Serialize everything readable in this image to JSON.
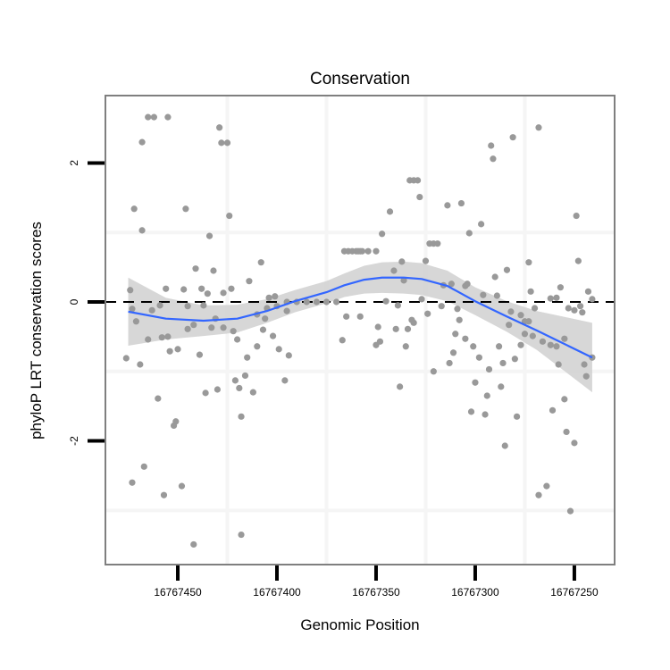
{
  "chart_data": {
    "type": "scatter",
    "title": "Conservation",
    "xlabel": "Genomic Position",
    "ylabel": "phyloP LRT conservation scores",
    "xlim": [
      16767486.5,
      16767229.7
    ],
    "x_reversed": true,
    "ylim": [
      -3.78,
      2.97
    ],
    "x_ticks": [
      16767450,
      16767400,
      16767350,
      16767300,
      16767250
    ],
    "x_tick_labels": [
      "16767450",
      "16767400",
      "16767350",
      "16767300",
      "16767250"
    ],
    "y_ticks": [
      2,
      0,
      -2
    ],
    "y_tick_labels": [
      "2",
      "0",
      "-2"
    ],
    "x_minor_grid": [
      16767425,
      16767375,
      16767325,
      16767275
    ],
    "y_minor_grid": [
      1,
      -1,
      -3
    ],
    "reference_line": 0,
    "colors": {
      "points": "#999999",
      "smooth": "#3366FF",
      "band": "#d3d3d3",
      "reference": "#000000",
      "frame": "#7f7f7f"
    },
    "points": [
      [
        16767465,
        2.66
      ],
      [
        16767462,
        2.66
      ],
      [
        16767455,
        2.66
      ],
      [
        16767468,
        2.3
      ],
      [
        16767429,
        2.51
      ],
      [
        16767428,
        2.29
      ],
      [
        16767425,
        2.29
      ],
      [
        16767472,
        1.34
      ],
      [
        16767446,
        1.34
      ],
      [
        16767424,
        1.24
      ],
      [
        16767468,
        1.03
      ],
      [
        16767434,
        0.95
      ],
      [
        16767408,
        0.57
      ],
      [
        16767441,
        0.48
      ],
      [
        16767432,
        0.45
      ],
      [
        16767414,
        0.3
      ],
      [
        16767474,
        0.17
      ],
      [
        16767456,
        0.19
      ],
      [
        16767447,
        0.18
      ],
      [
        16767438,
        0.19
      ],
      [
        16767435,
        0.12
      ],
      [
        16767423,
        0.19
      ],
      [
        16767427,
        0.13
      ],
      [
        16767404,
        0.06
      ],
      [
        16767401,
        0.08
      ],
      [
        16767366,
        0.73
      ],
      [
        16767364,
        0.73
      ],
      [
        16767362,
        0.73
      ],
      [
        16767360,
        0.73
      ],
      [
        16767358,
        0.73
      ],
      [
        16767357,
        0.73
      ],
      [
        16767473,
        -0.1
      ],
      [
        16767463,
        -0.12
      ],
      [
        16767459,
        -0.05
      ],
      [
        16767445,
        -0.06
      ],
      [
        16767437,
        -0.05
      ],
      [
        16767405,
        -0.09
      ],
      [
        16767400,
        -0.06
      ],
      [
        16767395,
        -0.13
      ],
      [
        16767410,
        -0.18
      ],
      [
        16767406,
        -0.24
      ],
      [
        16767431,
        -0.24
      ],
      [
        16767471,
        -0.28
      ],
      [
        16767365,
        -0.21
      ],
      [
        16767358,
        -0.21
      ],
      [
        16767445,
        -0.39
      ],
      [
        16767442,
        -0.33
      ],
      [
        16767433,
        -0.37
      ],
      [
        16767427,
        -0.37
      ],
      [
        16767422,
        -0.42
      ],
      [
        16767407,
        -0.4
      ],
      [
        16767395,
        0
      ],
      [
        16767390,
        0
      ],
      [
        16767385,
        0
      ],
      [
        16767380,
        0
      ],
      [
        16767375,
        0
      ],
      [
        16767370,
        0
      ],
      [
        16767465,
        -0.54
      ],
      [
        16767458,
        -0.51
      ],
      [
        16767455,
        -0.5
      ],
      [
        16767454,
        -0.71
      ],
      [
        16767450,
        -0.68
      ],
      [
        16767439,
        -0.76
      ],
      [
        16767476,
        -0.81
      ],
      [
        16767469,
        -0.9
      ],
      [
        16767420,
        -0.54
      ],
      [
        16767410,
        -0.64
      ],
      [
        16767402,
        -0.49
      ],
      [
        16767399,
        -0.68
      ],
      [
        16767394,
        -0.77
      ],
      [
        16767415,
        -0.8
      ],
      [
        16767367,
        -0.55
      ],
      [
        16767416,
        -1.06
      ],
      [
        16767421,
        -1.13
      ],
      [
        16767419,
        -1.24
      ],
      [
        16767412,
        -1.3
      ],
      [
        16767396,
        -1.13
      ],
      [
        16767436,
        -1.31
      ],
      [
        16767430,
        -1.26
      ],
      [
        16767460,
        -1.39
      ],
      [
        16767418,
        -1.65
      ],
      [
        16767451,
        -1.72
      ],
      [
        16767452,
        -1.78
      ],
      [
        16767467,
        -2.37
      ],
      [
        16767473,
        -2.6
      ],
      [
        16767448,
        -2.65
      ],
      [
        16767457,
        -2.78
      ],
      [
        16767418,
        -3.35
      ],
      [
        16767442,
        -3.49
      ],
      [
        16767268,
        2.51
      ],
      [
        16767281,
        2.37
      ],
      [
        16767292,
        2.25
      ],
      [
        16767291,
        2.06
      ],
      [
        16767333,
        1.75
      ],
      [
        16767331,
        1.75
      ],
      [
        16767329,
        1.75
      ],
      [
        16767328,
        1.51
      ],
      [
        16767343,
        1.3
      ],
      [
        16767314,
        1.39
      ],
      [
        16767307,
        1.42
      ],
      [
        16767249,
        1.24
      ],
      [
        16767297,
        1.12
      ],
      [
        16767347,
        0.98
      ],
      [
        16767303,
        0.99
      ],
      [
        16767323,
        0.84
      ],
      [
        16767321,
        0.84
      ],
      [
        16767319,
        0.84
      ],
      [
        16767359,
        0.73
      ],
      [
        16767354,
        0.73
      ],
      [
        16767350,
        0.73
      ],
      [
        16767337,
        0.58
      ],
      [
        16767325,
        0.59
      ],
      [
        16767248,
        0.59
      ],
      [
        16767273,
        0.57
      ],
      [
        16767341,
        0.45
      ],
      [
        16767284,
        0.46
      ],
      [
        16767290,
        0.36
      ],
      [
        16767336,
        0.31
      ],
      [
        16767316,
        0.24
      ],
      [
        16767312,
        0.26
      ],
      [
        16767305,
        0.23
      ],
      [
        16767304,
        0.26
      ],
      [
        16767257,
        0.21
      ],
      [
        16767272,
        0.15
      ],
      [
        16767243,
        0.15
      ],
      [
        16767296,
        0.1
      ],
      [
        16767289,
        0.09
      ],
      [
        16767262,
        0.05
      ],
      [
        16767259,
        0.06
      ],
      [
        16767241,
        0.04
      ],
      [
        16767345,
        0.01
      ],
      [
        16767327,
        0.04
      ],
      [
        16767339,
        -0.05
      ],
      [
        16767317,
        -0.06
      ],
      [
        16767309,
        -0.1
      ],
      [
        16767270,
        -0.09
      ],
      [
        16767253,
        -0.09
      ],
      [
        16767250,
        -0.12
      ],
      [
        16767247,
        -0.06
      ],
      [
        16767246,
        -0.15
      ],
      [
        16767324,
        -0.17
      ],
      [
        16767332,
        -0.26
      ],
      [
        16767308,
        -0.26
      ],
      [
        16767282,
        -0.14
      ],
      [
        16767277,
        -0.19
      ],
      [
        16767275,
        -0.28
      ],
      [
        16767273,
        -0.28
      ],
      [
        16767283,
        -0.33
      ],
      [
        16767349,
        -0.36
      ],
      [
        16767340,
        -0.39
      ],
      [
        16767334,
        -0.39
      ],
      [
        16767331,
        -0.3
      ],
      [
        16767310,
        -0.46
      ],
      [
        16767305,
        -0.53
      ],
      [
        16767301,
        -0.64
      ],
      [
        16767311,
        -0.73
      ],
      [
        16767313,
        -0.88
      ],
      [
        16767321,
        -1.0
      ],
      [
        16767298,
        -0.8
      ],
      [
        16767293,
        -0.97
      ],
      [
        16767286,
        -0.88
      ],
      [
        16767280,
        -0.82
      ],
      [
        16767288,
        -0.64
      ],
      [
        16767277,
        -0.62
      ],
      [
        16767275,
        -0.46
      ],
      [
        16767271,
        -0.49
      ],
      [
        16767266,
        -0.57
      ],
      [
        16767262,
        -0.62
      ],
      [
        16767259,
        -0.64
      ],
      [
        16767255,
        -0.53
      ],
      [
        16767258,
        -0.9
      ],
      [
        16767245,
        -0.9
      ],
      [
        16767241,
        -0.8
      ],
      [
        16767244,
        -1.07
      ],
      [
        16767350,
        -0.62
      ],
      [
        16767348,
        -0.57
      ],
      [
        16767335,
        -0.64
      ],
      [
        16767338,
        -1.22
      ],
      [
        16767300,
        -1.16
      ],
      [
        16767287,
        -1.22
      ],
      [
        16767294,
        -1.35
      ],
      [
        16767302,
        -1.58
      ],
      [
        16767295,
        -1.62
      ],
      [
        16767279,
        -1.65
      ],
      [
        16767255,
        -1.4
      ],
      [
        16767261,
        -1.56
      ],
      [
        16767254,
        -1.87
      ],
      [
        16767250,
        -2.03
      ],
      [
        16767285,
        -2.07
      ],
      [
        16767264,
        -2.65
      ],
      [
        16767268,
        -2.78
      ],
      [
        16767252,
        -3.01
      ]
    ],
    "smooth": {
      "method": "loess",
      "x": [
        16767475,
        16767456,
        16767437,
        16767420,
        16767405,
        16767391,
        16767375,
        16767366,
        16767356,
        16767347,
        16767336,
        16767327,
        16767314,
        16767300,
        16767284,
        16767269,
        16767241
      ],
      "y": [
        -0.14,
        -0.24,
        -0.27,
        -0.24,
        -0.13,
        0.01,
        0.14,
        0.24,
        0.32,
        0.35,
        0.35,
        0.33,
        0.23,
        0.01,
        -0.21,
        -0.41,
        -0.8
      ],
      "se_halfwidth": [
        0.49,
        0.3,
        0.22,
        0.2,
        0.17,
        0.16,
        0.16,
        0.17,
        0.2,
        0.22,
        0.23,
        0.23,
        0.22,
        0.2,
        0.22,
        0.28,
        0.5
      ]
    }
  }
}
